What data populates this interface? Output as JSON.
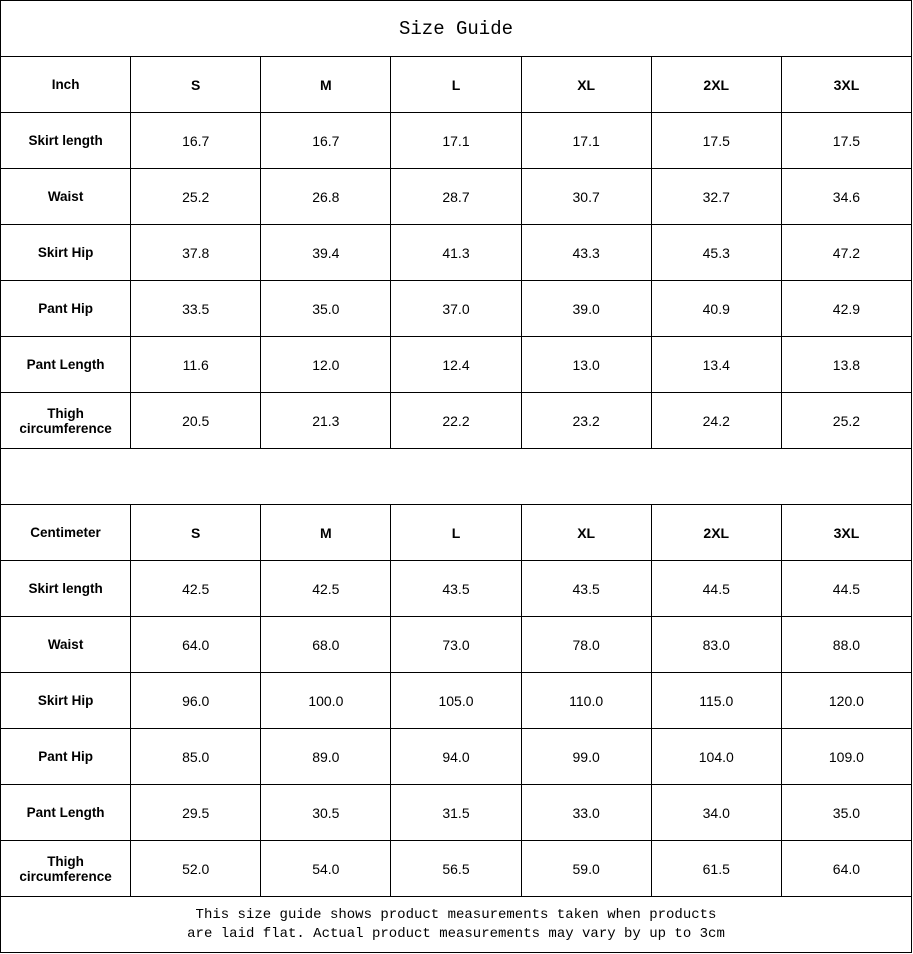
{
  "title": "Size Guide",
  "sizes": [
    "S",
    "M",
    "L",
    "XL",
    "2XL",
    "3XL"
  ],
  "tables": [
    {
      "unit": "Inch",
      "rows": [
        {
          "label": "Skirt length",
          "values": [
            "16.7",
            "16.7",
            "17.1",
            "17.1",
            "17.5",
            "17.5"
          ]
        },
        {
          "label": "Waist",
          "values": [
            "25.2",
            "26.8",
            "28.7",
            "30.7",
            "32.7",
            "34.6"
          ]
        },
        {
          "label": "Skirt Hip",
          "values": [
            "37.8",
            "39.4",
            "41.3",
            "43.3",
            "45.3",
            "47.2"
          ]
        },
        {
          "label": "Pant Hip",
          "values": [
            "33.5",
            "35.0",
            "37.0",
            "39.0",
            "40.9",
            "42.9"
          ]
        },
        {
          "label": "Pant Length",
          "values": [
            "11.6",
            "12.0",
            "12.4",
            "13.0",
            "13.4",
            "13.8"
          ]
        },
        {
          "label": "Thigh circumference",
          "values": [
            "20.5",
            "21.3",
            "22.2",
            "23.2",
            "24.2",
            "25.2"
          ]
        }
      ]
    },
    {
      "unit": "Centimeter",
      "rows": [
        {
          "label": "Skirt length",
          "values": [
            "42.5",
            "42.5",
            "43.5",
            "43.5",
            "44.5",
            "44.5"
          ]
        },
        {
          "label": "Waist",
          "values": [
            "64.0",
            "68.0",
            "73.0",
            "78.0",
            "83.0",
            "88.0"
          ]
        },
        {
          "label": "Skirt Hip",
          "values": [
            "96.0",
            "100.0",
            "105.0",
            "110.0",
            "115.0",
            "120.0"
          ]
        },
        {
          "label": "Pant Hip",
          "values": [
            "85.0",
            "89.0",
            "94.0",
            "99.0",
            "104.0",
            "109.0"
          ]
        },
        {
          "label": "Pant Length",
          "values": [
            "29.5",
            "30.5",
            "31.5",
            "33.0",
            "34.0",
            "35.0"
          ]
        },
        {
          "label": "Thigh circumference",
          "values": [
            "52.0",
            "54.0",
            "56.5",
            "59.0",
            "61.5",
            "64.0"
          ]
        }
      ]
    }
  ],
  "note_line1": "This size guide shows product measurements taken when products",
  "note_line2": "are laid flat. Actual product measurements may vary by up to 3cm"
}
